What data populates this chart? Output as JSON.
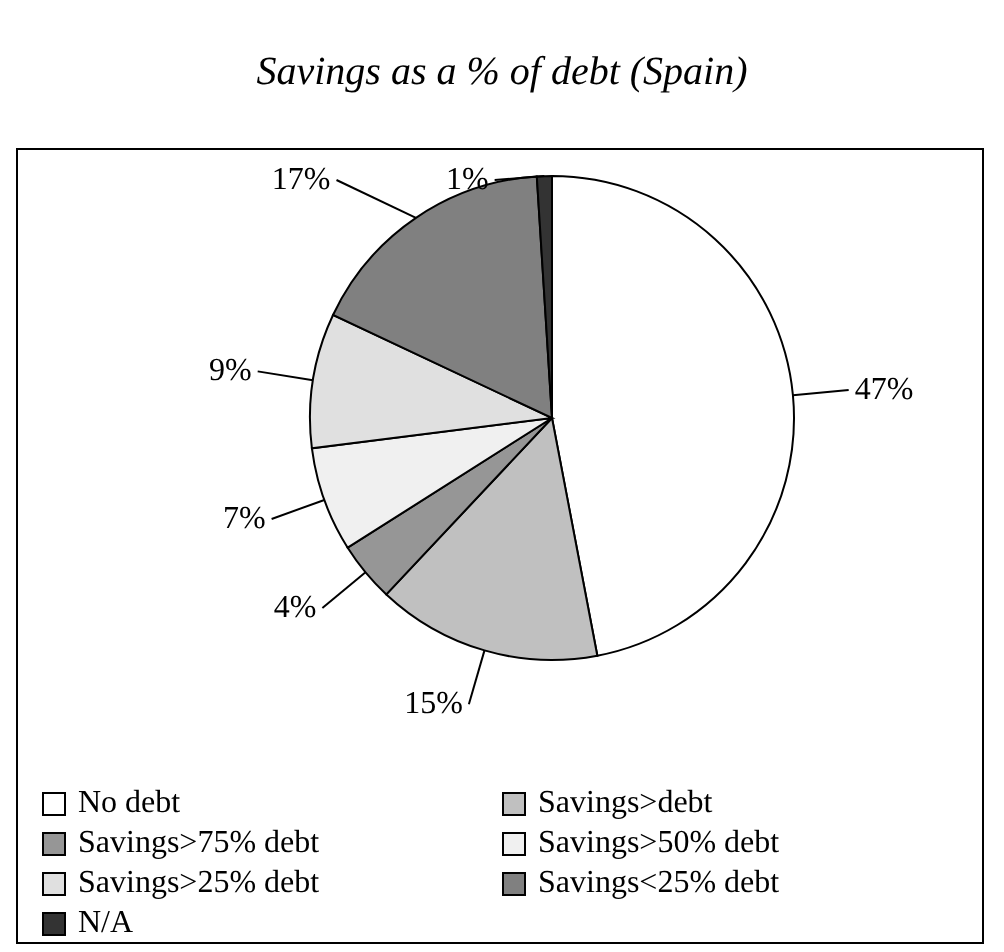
{
  "chart_data": {
    "type": "pie",
    "title": "Savings as a % of debt (Spain)",
    "categories": [
      "No debt",
      "Savings>debt",
      "Savings>75% debt",
      "Savings>50% debt",
      "Savings>25% debt",
      "Savings<25% debt",
      "N/A"
    ],
    "values": [
      47,
      15,
      4,
      7,
      9,
      17,
      1
    ],
    "value_labels": [
      "47%",
      "15%",
      "4%",
      "7%",
      "9%",
      "17%",
      "1%"
    ],
    "colors": [
      "#ffffff",
      "#c0c0c0",
      "#969696",
      "#f0f0f0",
      "#e0e0e0",
      "#808080",
      "#333333"
    ],
    "legend": "bottom"
  }
}
